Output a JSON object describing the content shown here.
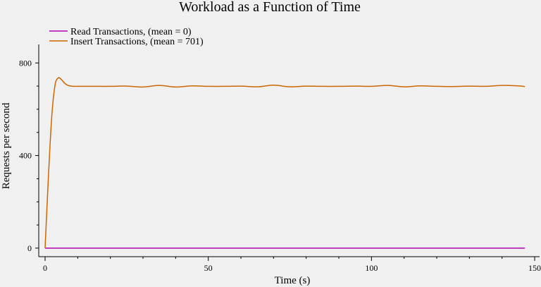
{
  "chart_data": {
    "type": "line",
    "title": "Workload as a Function of Time",
    "xlabel": "Time (s)",
    "ylabel": "Requests per second",
    "xlim": [
      0,
      150
    ],
    "ylim": [
      -40,
      880
    ],
    "xticks": [
      0,
      50,
      100,
      150
    ],
    "yticks": [
      0,
      400,
      800
    ],
    "x_minor_ticks": [
      10,
      20,
      30,
      40,
      60,
      70,
      80,
      90,
      110,
      120,
      130,
      140
    ],
    "y_minor_ticks": [
      100,
      200,
      300,
      500,
      600,
      700
    ],
    "grid": false,
    "legend_position": "top-left",
    "series": [
      {
        "name": "Read Transactions, (mean = 0)",
        "color": "#b000b0",
        "x": [
          0,
          147
        ],
        "y": [
          0,
          0
        ]
      },
      {
        "name": "Insert Transactions, (mean = 701)",
        "color": "#cc6600",
        "x": [
          0,
          1,
          2,
          3,
          4,
          5,
          6,
          7,
          8,
          9,
          10,
          15,
          20,
          25,
          30,
          35,
          40,
          45,
          50,
          55,
          60,
          65,
          70,
          75,
          80,
          85,
          90,
          95,
          100,
          105,
          110,
          115,
          120,
          125,
          130,
          135,
          140,
          145,
          147
        ],
        "y": [
          0,
          300,
          560,
          700,
          735,
          728,
          712,
          703,
          700,
          699,
          699,
          699,
          699,
          700,
          696,
          703,
          696,
          701,
          699,
          699,
          700,
          697,
          704,
          697,
          700,
          699,
          699,
          700,
          699,
          703,
          697,
          701,
          699,
          698,
          700,
          699,
          703,
          701,
          698
        ]
      }
    ]
  }
}
